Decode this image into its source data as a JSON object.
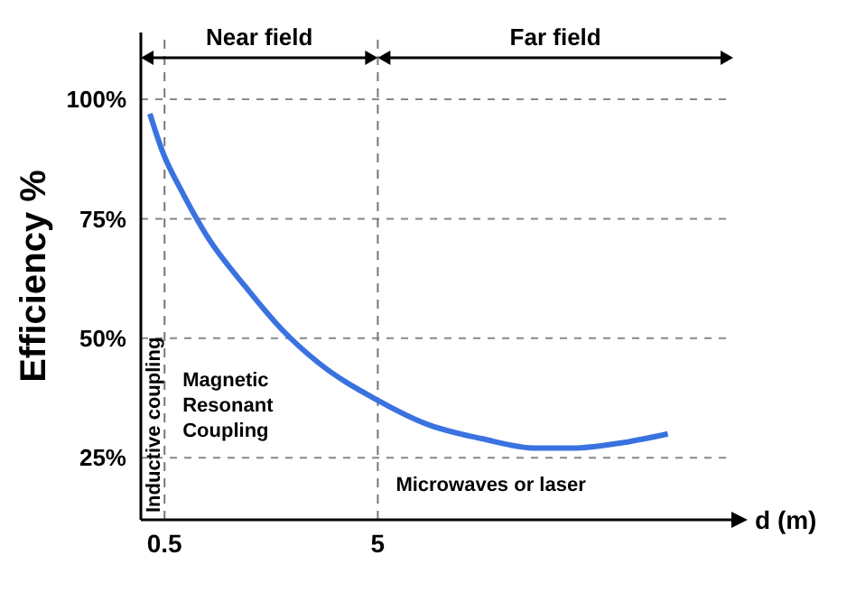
{
  "chart_data": {
    "type": "line",
    "xlabel": "d (m)",
    "ylabel": "Efficiency %",
    "x": [
      0.19,
      0.46,
      0.85,
      1.42,
      2.19,
      2.96,
      3.73,
      5.0,
      6.04,
      7.19,
      8.35,
      9.12,
      10.08,
      11.12
    ],
    "series": [
      {
        "color": "#3a72e0",
        "values": [
          97,
          89,
          81,
          71,
          61,
          52,
          45,
          37,
          32,
          29,
          27,
          27,
          28,
          30
        ]
      }
    ],
    "xlim": [
      0,
      12.5
    ],
    "ylim": [
      12,
      114
    ],
    "xticks": [
      0.5,
      5
    ],
    "yticks": [
      {
        "value": 25,
        "label": "25%"
      },
      {
        "value": 50,
        "label": "50%"
      },
      {
        "value": 75,
        "label": "75%"
      },
      {
        "value": 100,
        "label": "100%"
      }
    ],
    "grid": "y",
    "marker": "none",
    "line_style": "solid",
    "ref_lines": [
      {
        "axis": "x",
        "value": 0.5,
        "line_style": "dashed",
        "color": "#777777"
      },
      {
        "axis": "x",
        "value": 5,
        "line_style": "dashed",
        "color": "#777777"
      }
    ],
    "annotations": [
      "Near field",
      "Far field",
      "Inductive coupling",
      "Magnetic\nResonant\nCoupling",
      "Microwaves or laser"
    ]
  }
}
